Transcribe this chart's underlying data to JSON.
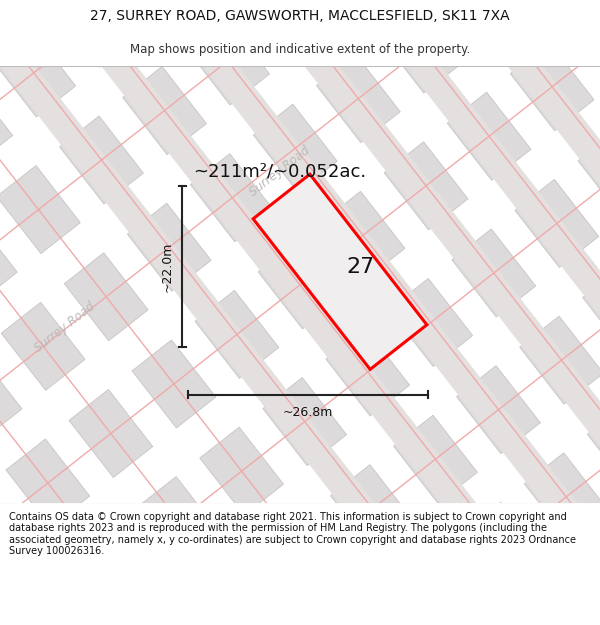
{
  "title": "27, SURREY ROAD, GAWSWORTH, MACCLESFIELD, SK11 7XA",
  "subtitle": "Map shows position and indicative extent of the property.",
  "area_label": "~211m²/~0.052ac.",
  "property_number": "27",
  "dim_width": "~26.8m",
  "dim_height": "~22.0m",
  "footer": "Contains OS data © Crown copyright and database right 2021. This information is subject to Crown copyright and database rights 2023 and is reproduced with the permission of HM Land Registry. The polygons (including the associated geometry, namely x, y co-ordinates) are subject to Crown copyright and database rights 2023 Ordnance Survey 100026316.",
  "map_bg": "#eeecec",
  "block_color": "#dcdada",
  "block_edge": "#c8c4c4",
  "road_fill": "#e4e0e0",
  "road_edge": "#d0cccc",
  "pink_line": "#f0aaaa",
  "property_fill": "#f0eeee",
  "property_edge": "#ff0000",
  "road_label_color": "#c0b8b8",
  "title_fontsize": 10,
  "subtitle_fontsize": 8.5,
  "footer_fontsize": 7,
  "area_fontsize": 13,
  "number_fontsize": 16,
  "dim_fontsize": 9
}
